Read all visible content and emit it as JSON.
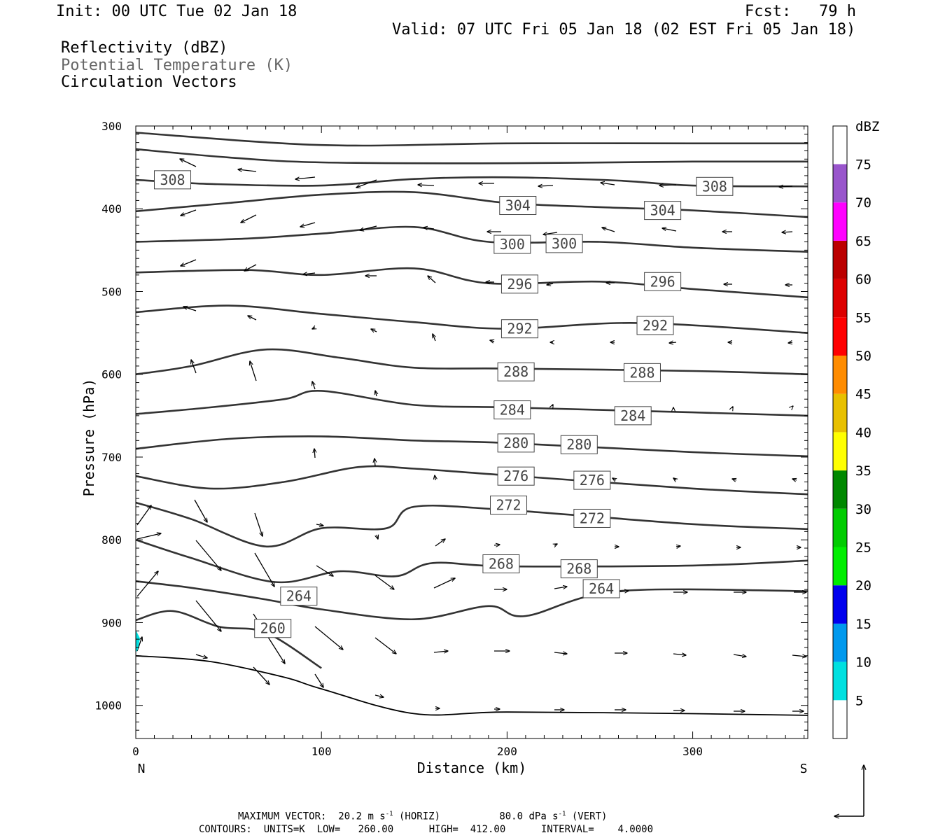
{
  "header": {
    "init": "Init: 00 UTC Tue 02 Jan 18",
    "fcst": "Fcst:   79 h",
    "valid": "Valid: 07 UTC Fri 05 Jan 18 (02 EST Fri 05 Jan 18)",
    "field1": "Reflectivity (dBZ)",
    "field2": "Potential Temperature (K)",
    "field3": "Circulation Vectors"
  },
  "axes": {
    "ylabel": "Pressure (hPa)",
    "xlabel": "Distance (km)",
    "left_end": "N",
    "right_end": "S",
    "yticks": [
      "300",
      "400",
      "500",
      "600",
      "700",
      "800",
      "900",
      "1000"
    ],
    "xticks": [
      "0",
      "100",
      "200",
      "300"
    ]
  },
  "colorbar": {
    "title": "dBZ",
    "labels": [
      "5",
      "10",
      "15",
      "20",
      "25",
      "30",
      "35",
      "40",
      "45",
      "50",
      "55",
      "60",
      "65",
      "70",
      "75"
    ],
    "colors": [
      "#00e0e0",
      "#0099ee",
      "#0000ee",
      "#00ee00",
      "#00cc00",
      "#008800",
      "#ffff00",
      "#e8c000",
      "#ff8c00",
      "#ff0000",
      "#dd0000",
      "#bb0000",
      "#ff00ff",
      "#9955cc",
      "#ffffff"
    ]
  },
  "footer": {
    "maxvec_label": "MAXIMUM VECTOR:",
    "horiz_value": "20.2 m s",
    "horiz_exp": "-1",
    "horiz_tag": " (HORIZ)",
    "vert_value": "80.0 dPa s",
    "vert_exp": "-1",
    "vert_tag": " (VERT)",
    "contours": "CONTOURS:  UNITS=K  LOW=   260.00      HIGH=  412.00      INTERVAL=    4.0000"
  },
  "chart_data": {
    "type": "cross-section",
    "xlim": [
      0,
      362
    ],
    "ylim": [
      1040,
      300
    ],
    "contour_units": "K",
    "theta_lines": [
      {
        "points": [
          [
            0,
            308
          ],
          [
            100,
            323
          ],
          [
            200,
            321
          ],
          [
            300,
            321
          ],
          [
            362,
            321
          ]
        ]
      },
      {
        "points": [
          [
            0,
            328
          ],
          [
            50,
            338
          ],
          [
            100,
            344
          ],
          [
            200,
            345
          ],
          [
            300,
            343
          ],
          [
            362,
            343
          ]
        ]
      },
      {
        "label": "308",
        "labels_at": [
          [
            10,
            365
          ],
          [
            302,
            373
          ]
        ],
        "points": [
          [
            0,
            365
          ],
          [
            40,
            370
          ],
          [
            100,
            372
          ],
          [
            150,
            364
          ],
          [
            200,
            362
          ],
          [
            260,
            366
          ],
          [
            300,
            372
          ],
          [
            362,
            373
          ]
        ]
      },
      {
        "label": "304",
        "labels_at": [
          [
            196,
            396
          ],
          [
            274,
            402
          ]
        ],
        "points": [
          [
            0,
            403
          ],
          [
            50,
            393
          ],
          [
            100,
            383
          ],
          [
            150,
            380
          ],
          [
            200,
            393
          ],
          [
            250,
            398
          ],
          [
            300,
            402
          ],
          [
            362,
            410
          ]
        ]
      },
      {
        "label": "300",
        "labels_at": [
          [
            193,
            443
          ],
          [
            221,
            442
          ]
        ],
        "points": [
          [
            0,
            440
          ],
          [
            60,
            436
          ],
          [
            100,
            430
          ],
          [
            150,
            422
          ],
          [
            190,
            440
          ],
          [
            250,
            440
          ],
          [
            300,
            447
          ],
          [
            362,
            452
          ]
        ]
      },
      {
        "label": "296",
        "labels_at": [
          [
            197,
            491
          ],
          [
            274,
            488
          ]
        ],
        "points": [
          [
            0,
            477
          ],
          [
            60,
            474
          ],
          [
            100,
            480
          ],
          [
            150,
            472
          ],
          [
            190,
            490
          ],
          [
            250,
            488
          ],
          [
            300,
            497
          ],
          [
            362,
            507
          ]
        ]
      },
      {
        "label": "292",
        "labels_at": [
          [
            197,
            545
          ],
          [
            270,
            541
          ]
        ],
        "points": [
          [
            0,
            525
          ],
          [
            50,
            517
          ],
          [
            100,
            527
          ],
          [
            150,
            537
          ],
          [
            200,
            545
          ],
          [
            270,
            538
          ],
          [
            362,
            550
          ]
        ]
      },
      {
        "label": "288",
        "labels_at": [
          [
            195,
            597
          ],
          [
            263,
            598
          ]
        ],
        "points": [
          [
            0,
            600
          ],
          [
            30,
            590
          ],
          [
            70,
            570
          ],
          [
            110,
            580
          ],
          [
            150,
            592
          ],
          [
            200,
            593
          ],
          [
            300,
            596
          ],
          [
            362,
            600
          ]
        ]
      },
      {
        "label": "284",
        "labels_at": [
          [
            193,
            643
          ],
          [
            258,
            650
          ]
        ],
        "points": [
          [
            0,
            648
          ],
          [
            40,
            640
          ],
          [
            80,
            630
          ],
          [
            100,
            620
          ],
          [
            150,
            637
          ],
          [
            200,
            640
          ],
          [
            300,
            646
          ],
          [
            362,
            650
          ]
        ]
      },
      {
        "label": "280",
        "labels_at": [
          [
            195,
            683
          ],
          [
            229,
            685
          ]
        ],
        "points": [
          [
            0,
            690
          ],
          [
            50,
            678
          ],
          [
            100,
            675
          ],
          [
            150,
            680
          ],
          [
            200,
            683
          ],
          [
            300,
            694
          ],
          [
            362,
            699
          ]
        ]
      },
      {
        "label": "276",
        "labels_at": [
          [
            195,
            723
          ],
          [
            236,
            728
          ]
        ],
        "points": [
          [
            0,
            723
          ],
          [
            40,
            738
          ],
          [
            80,
            730
          ],
          [
            120,
            712
          ],
          [
            150,
            714
          ],
          [
            200,
            722
          ],
          [
            300,
            738
          ],
          [
            362,
            745
          ]
        ]
      },
      {
        "label": "272",
        "labels_at": [
          [
            191,
            758
          ],
          [
            236,
            774
          ]
        ],
        "points": [
          [
            0,
            755
          ],
          [
            30,
            775
          ],
          [
            70,
            808
          ],
          [
            100,
            786
          ],
          [
            135,
            786
          ],
          [
            150,
            760
          ],
          [
            200,
            764
          ],
          [
            300,
            781
          ],
          [
            362,
            787
          ]
        ]
      },
      {
        "label": "268",
        "labels_at": [
          [
            187,
            829
          ],
          [
            229,
            835
          ]
        ],
        "points": [
          [
            0,
            800
          ],
          [
            30,
            822
          ],
          [
            75,
            851
          ],
          [
            110,
            838
          ],
          [
            140,
            844
          ],
          [
            160,
            828
          ],
          [
            200,
            832
          ],
          [
            300,
            831
          ],
          [
            362,
            825
          ]
        ]
      },
      {
        "label": "264",
        "labels_at": [
          [
            78,
            868
          ],
          [
            241,
            859
          ]
        ],
        "points": [
          [
            0,
            850
          ],
          [
            30,
            858
          ],
          [
            70,
            872
          ],
          [
            100,
            884
          ],
          [
            150,
            896
          ],
          [
            190,
            880
          ],
          [
            210,
            892
          ],
          [
            260,
            862
          ],
          [
            362,
            862
          ]
        ]
      },
      {
        "label": "260",
        "labels_at": [
          [
            64,
            907
          ]
        ],
        "points": [
          [
            0,
            897
          ],
          [
            20,
            886
          ],
          [
            45,
            905
          ],
          [
            70,
            912
          ],
          [
            100,
            955
          ]
        ]
      }
    ],
    "ground": {
      "points": [
        [
          0,
          940
        ],
        [
          40,
          947
        ],
        [
          80,
          966
        ],
        [
          100,
          980
        ],
        [
          150,
          1010
        ],
        [
          200,
          1008
        ],
        [
          300,
          1010
        ],
        [
          362,
          1012
        ]
      ]
    }
  }
}
